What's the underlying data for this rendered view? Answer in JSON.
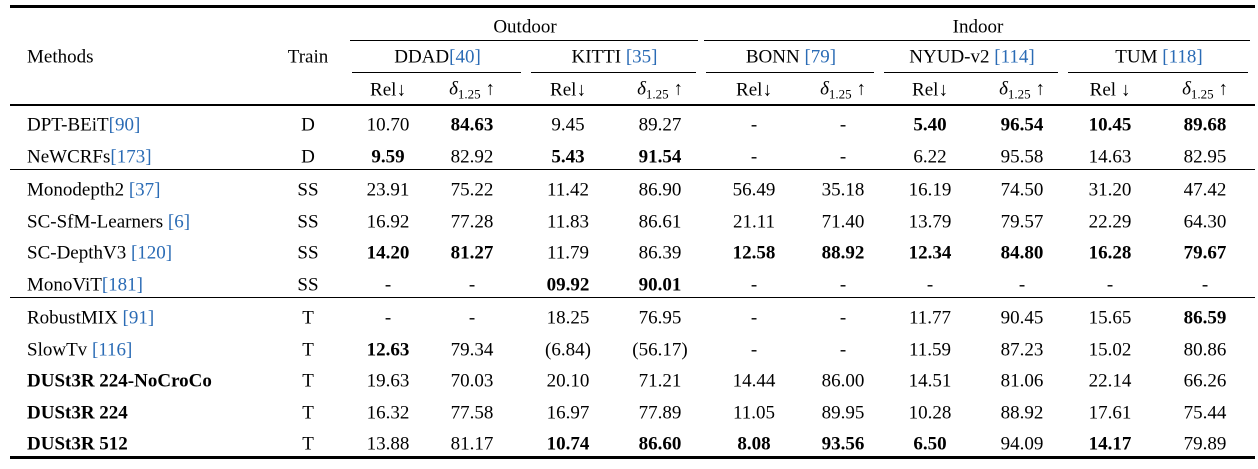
{
  "table": {
    "header": {
      "methods": "Methods",
      "train": "Train",
      "groups": [
        {
          "label": "Outdoor",
          "datasets": [
            {
              "name": "DDAD",
              "cite": "[40]"
            },
            {
              "name": "KITTI ",
              "cite": "[35]"
            }
          ]
        },
        {
          "label": "Indoor",
          "datasets": [
            {
              "name": "BONN ",
              "cite": "[79]"
            },
            {
              "name": "NYUD-v2 ",
              "cite": "[114]"
            },
            {
              "name": "TUM ",
              "cite": "[118]"
            }
          ]
        }
      ],
      "metrics": [
        {
          "label": "Rel↓"
        },
        {
          "symbol": "δ",
          "sub": "1.25",
          "arrow": " ↑"
        },
        {
          "label": "Rel↓"
        },
        {
          "symbol": "δ",
          "sub": "1.25",
          "arrow": " ↑"
        },
        {
          "label": "Rel↓"
        },
        {
          "symbol": "δ",
          "sub": "1.25",
          "arrow": " ↑"
        },
        {
          "label": "Rel↓"
        },
        {
          "symbol": "δ",
          "sub": "1.25",
          "arrow": " ↑"
        },
        {
          "label": "Rel ↓"
        },
        {
          "symbol": "δ",
          "sub": "1.25",
          "arrow": " ↑"
        }
      ]
    },
    "sections": [
      [
        {
          "method": "DPT-BEiT",
          "cite": "[90]",
          "train": "D",
          "cells": [
            "10.70",
            "84.63",
            "9.45",
            "89.27",
            "-",
            "-",
            "5.40",
            "96.54",
            "10.45",
            "89.68"
          ],
          "bold": [
            false,
            true,
            false,
            false,
            false,
            false,
            true,
            true,
            true,
            true
          ]
        },
        {
          "method": "NeWCRFs",
          "cite": "[173]",
          "train": "D",
          "cells": [
            "9.59",
            "82.92",
            "5.43",
            "91.54",
            "-",
            "-",
            "6.22",
            "95.58",
            "14.63",
            "82.95"
          ],
          "bold": [
            true,
            false,
            true,
            true,
            false,
            false,
            false,
            false,
            false,
            false
          ]
        }
      ],
      [
        {
          "method": "Monodepth2 ",
          "cite": "[37]",
          "train": "SS",
          "cells": [
            "23.91",
            "75.22",
            "11.42",
            "86.90",
            "56.49",
            "35.18",
            "16.19",
            "74.50",
            "31.20",
            "47.42"
          ],
          "bold": [
            false,
            false,
            false,
            false,
            false,
            false,
            false,
            false,
            false,
            false
          ]
        },
        {
          "method": "SC-SfM-Learners ",
          "cite": "[6]",
          "train": "SS",
          "cells": [
            "16.92",
            "77.28",
            "11.83",
            "86.61",
            "21.11",
            "71.40",
            "13.79",
            "79.57",
            "22.29",
            "64.30"
          ],
          "bold": [
            false,
            false,
            false,
            false,
            false,
            false,
            false,
            false,
            false,
            false
          ]
        },
        {
          "method": "SC-DepthV3 ",
          "cite": "[120]",
          "train": "SS",
          "cells": [
            "14.20",
            "81.27",
            "11.79",
            "86.39",
            "12.58",
            "88.92",
            "12.34",
            "84.80",
            "16.28",
            "79.67"
          ],
          "bold": [
            true,
            true,
            false,
            false,
            true,
            true,
            true,
            true,
            true,
            true
          ]
        },
        {
          "method": "MonoViT",
          "cite": "[181]",
          "train": "SS",
          "cells": [
            "-",
            "-",
            "09.92",
            "90.01",
            "-",
            "-",
            "-",
            "-",
            "-",
            "-"
          ],
          "bold": [
            false,
            false,
            true,
            true,
            false,
            false,
            false,
            false,
            false,
            false
          ]
        }
      ],
      [
        {
          "method": "RobustMIX ",
          "cite": "[91]",
          "train": "T",
          "cells": [
            "-",
            "-",
            "18.25",
            "76.95",
            "-",
            "-",
            "11.77",
            "90.45",
            "15.65",
            "86.59"
          ],
          "bold": [
            false,
            false,
            false,
            false,
            false,
            false,
            false,
            false,
            false,
            true
          ]
        },
        {
          "method": "SlowTv ",
          "cite": "[116]",
          "train": "T",
          "cells": [
            "12.63",
            "79.34",
            "(6.84)",
            "(56.17)",
            "-",
            "-",
            "11.59",
            "87.23",
            "15.02",
            "80.86"
          ],
          "bold": [
            true,
            false,
            false,
            false,
            false,
            false,
            false,
            false,
            false,
            false
          ]
        },
        {
          "method": "DUSt3R 224-NoCroCo",
          "method_bold": true,
          "train": "T",
          "cells": [
            "19.63",
            "70.03",
            "20.10",
            "71.21",
            "14.44",
            "86.00",
            "14.51",
            "81.06",
            "22.14",
            "66.26"
          ],
          "bold": [
            false,
            false,
            false,
            false,
            false,
            false,
            false,
            false,
            false,
            false
          ]
        },
        {
          "method": "DUSt3R 224",
          "method_bold": true,
          "train": "T",
          "cells": [
            "16.32",
            "77.58",
            "16.97",
            "77.89",
            "11.05",
            "89.95",
            "10.28",
            "88.92",
            "17.61",
            "75.44"
          ],
          "bold": [
            false,
            false,
            false,
            false,
            false,
            false,
            false,
            false,
            false,
            false
          ]
        },
        {
          "method": "DUSt3R 512",
          "method_bold": true,
          "train": "T",
          "cells": [
            "13.88",
            "81.17",
            "10.74",
            "86.60",
            "8.08",
            "93.56",
            "6.50",
            "94.09",
            "14.17",
            "79.89"
          ],
          "bold": [
            false,
            false,
            true,
            true,
            true,
            true,
            true,
            false,
            true,
            false
          ]
        }
      ]
    ]
  }
}
